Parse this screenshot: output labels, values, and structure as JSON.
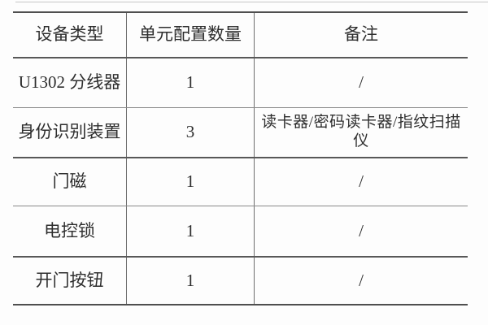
{
  "table": {
    "columns": [
      {
        "label": "设备类型"
      },
      {
        "label": "单元配置数量"
      },
      {
        "label": "备注"
      }
    ],
    "rows": [
      {
        "device": "U1302 分线器",
        "quantity": "1",
        "remark": "/"
      },
      {
        "device": "身份识别装置",
        "quantity": "3",
        "remark": "读卡器/密码读卡器/指纹扫描仪"
      },
      {
        "device": "门磁",
        "quantity": "1",
        "remark": "/"
      },
      {
        "device": "电控锁",
        "quantity": "1",
        "remark": "/"
      },
      {
        "device": "开门按钮",
        "quantity": "1",
        "remark": "/"
      }
    ]
  }
}
